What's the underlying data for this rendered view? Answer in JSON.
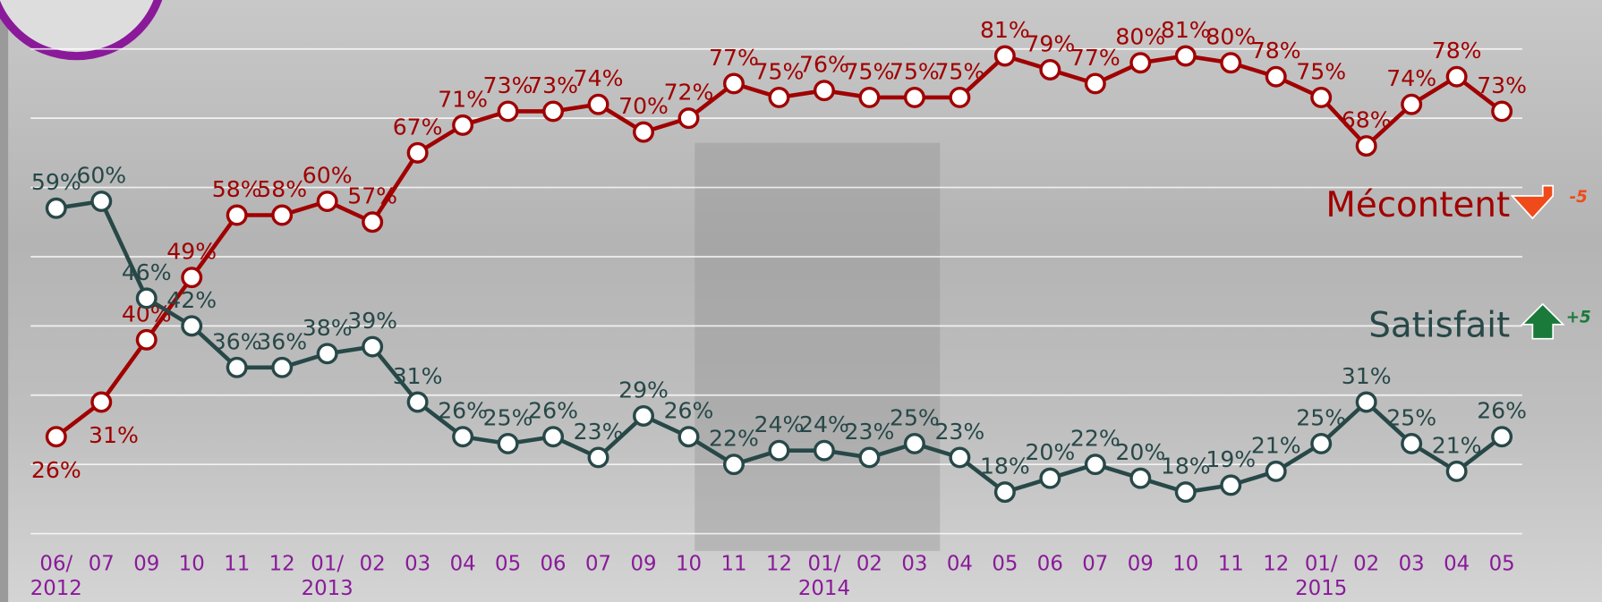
{
  "chart_data": {
    "type": "line",
    "categories": [
      "06/\n2012",
      "07",
      "09",
      "10",
      "11",
      "12",
      "01/\n2013",
      "02",
      "03",
      "04",
      "05",
      "06",
      "07",
      "09",
      "10",
      "11",
      "12",
      "01/\n2014",
      "02",
      "03",
      "04",
      "05",
      "06",
      "07",
      "09",
      "10",
      "11",
      "12",
      "01/\n2015",
      "02",
      "03",
      "04",
      "05"
    ],
    "series": [
      {
        "name": "Mécontent",
        "color": "#a00000",
        "change": "-5",
        "change_color": "#f04a1a",
        "values": [
          26,
          31,
          40,
          49,
          58,
          58,
          60,
          57,
          67,
          71,
          73,
          73,
          74,
          70,
          72,
          77,
          75,
          76,
          75,
          75,
          75,
          81,
          79,
          77,
          80,
          81,
          80,
          78,
          75,
          68,
          74,
          78,
          73
        ],
        "value_labels": [
          "26%",
          "31%",
          "40%",
          "49%",
          "58%",
          "58%",
          "60%",
          "57%",
          "67%",
          "71%",
          "73%",
          "73%",
          "74%",
          "70%",
          "72%",
          "77%",
          "75%",
          "76%",
          "75%",
          "75%",
          "75%",
          "81%",
          "79%",
          "77%",
          "80%",
          "81%",
          "80%",
          "78%",
          "75%",
          "68%",
          "74%",
          "78%",
          "73%"
        ]
      },
      {
        "name": "Satisfait",
        "color": "#284848",
        "change": "+5",
        "change_color": "#1a7a3a",
        "values": [
          59,
          60,
          46,
          42,
          36,
          36,
          38,
          39,
          31,
          26,
          25,
          26,
          23,
          29,
          26,
          22,
          24,
          24,
          23,
          25,
          23,
          18,
          20,
          22,
          20,
          18,
          19,
          21,
          25,
          31,
          25,
          21,
          26
        ],
        "value_labels": [
          "59%",
          "60%",
          "46%",
          "42%",
          "36%",
          "36%",
          "38%",
          "39%",
          "31%",
          "26%",
          "25%",
          "26%",
          "23%",
          "29%",
          "26%",
          "22%",
          "24%",
          "24%",
          "23%",
          "25%",
          "23%",
          "18%",
          "20%",
          "22%",
          "20%",
          "18%",
          "19%",
          "21%",
          "25%",
          "31%",
          "25%",
          "21%",
          "26%"
        ]
      }
    ],
    "ylim": [
      12,
      82
    ]
  }
}
